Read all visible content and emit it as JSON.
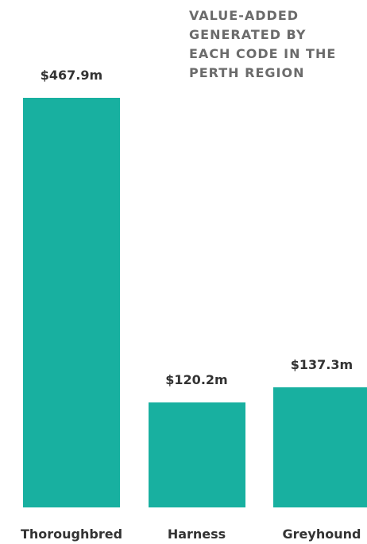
{
  "chart_data": {
    "type": "bar",
    "title": "VALUE-ADDED GENERATED BY EACH CODE IN THE PERTH REGION",
    "categories": [
      "Thoroughbred",
      "Harness",
      "Greyhound"
    ],
    "values": [
      467.9,
      120.2,
      137.3
    ],
    "value_labels": [
      "$467.9m",
      "$120.2m",
      "$137.3m"
    ],
    "color": "#18b0a0"
  }
}
